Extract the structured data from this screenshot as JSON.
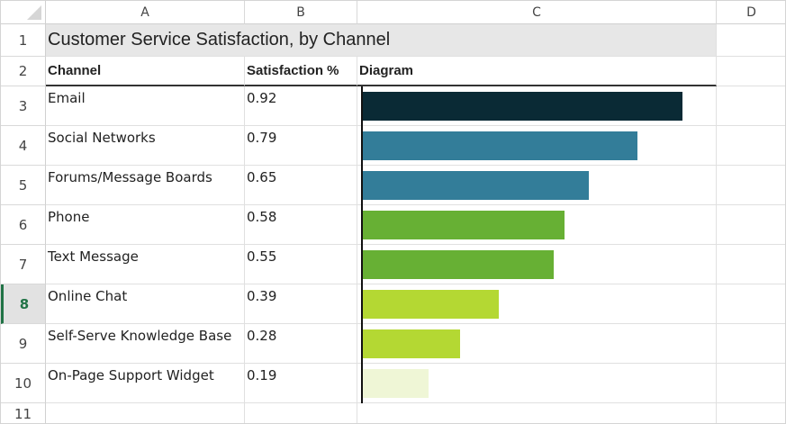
{
  "columns": [
    "A",
    "B",
    "C",
    "D"
  ],
  "rows": [
    "1",
    "2",
    "3",
    "4",
    "5",
    "6",
    "7",
    "8",
    "9",
    "10",
    "11"
  ],
  "selected_row": "8",
  "title": "Customer Service Satisfaction, by Channel",
  "headers": {
    "channel": "Channel",
    "satisfaction": "Satisfaction %",
    "diagram": "Diagram"
  },
  "chart_data": {
    "type": "bar",
    "orientation": "horizontal",
    "categories": [
      "Email",
      "Social Networks",
      "Forums/Message Boards",
      "Phone",
      "Text Message",
      "Online Chat",
      "Self-Serve Knowledge Base",
      "On-Page Support Widget"
    ],
    "values": [
      0.92,
      0.79,
      0.65,
      0.58,
      0.55,
      0.39,
      0.28,
      0.19
    ],
    "value_labels": [
      "0.92",
      "0.79",
      "0.65",
      "0.58",
      "0.55",
      "0.39",
      "0.28",
      "0.19"
    ],
    "colors": [
      "#0a2a35",
      "#337d99",
      "#337d99",
      "#67b034",
      "#67b034",
      "#b4d833",
      "#b4d833",
      "#eff6d6"
    ],
    "xlim": [
      0,
      1
    ]
  }
}
